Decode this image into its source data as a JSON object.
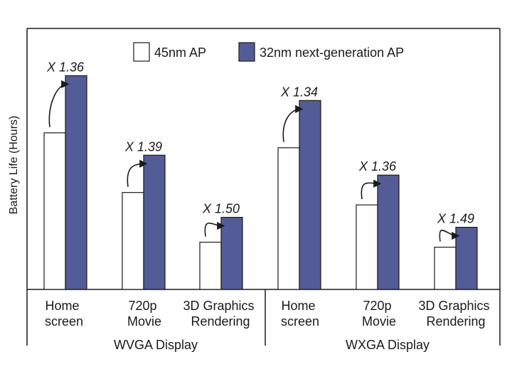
{
  "chart_data": {
    "type": "bar",
    "ylabel": "Battery Life (Hours)",
    "ylim": [
      0,
      10.5
    ],
    "y_ticks_shown": false,
    "grid": false,
    "legend_position": "top-center",
    "groups": [
      {
        "label": "WVGA Display",
        "categories": [
          "Home screen",
          "720p Movie",
          "3D Graphics Rendering"
        ],
        "ratio_labels": [
          "X 1.36",
          "X 1.39",
          "X 1.50"
        ]
      },
      {
        "label": "WXGA Display",
        "categories": [
          "Home screen",
          "720p Movie",
          "3D Graphics Rendering"
        ],
        "ratio_labels": [
          "X 1.34",
          "X 1.36",
          "X 1.49"
        ]
      }
    ],
    "series": [
      {
        "name": "45nm AP",
        "color": "#ffffff",
        "values": [
          6.3,
          3.9,
          1.9,
          5.7,
          3.4,
          1.7
        ]
      },
      {
        "name": "32nm next-generation AP",
        "color": "#545c97",
        "values": [
          8.6,
          5.4,
          2.9,
          7.6,
          4.6,
          2.5
        ]
      }
    ]
  }
}
